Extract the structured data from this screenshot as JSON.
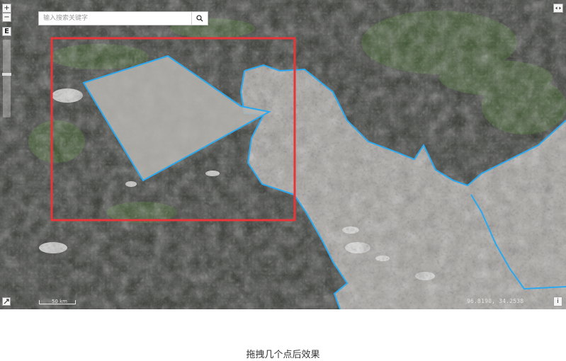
{
  "search": {
    "placeholder": "输入搜索关键字",
    "button_icon": "search-icon"
  },
  "controls": {
    "zoom_in": "+",
    "zoom_out": "−",
    "layer_toggle": "E",
    "expand_icon": "expand-icon",
    "fullscreen_icon": "collapse-arrows-icon",
    "info_label": "i"
  },
  "map": {
    "coordinates": "96.8190, 34.2538",
    "scale_label": "50 km",
    "colors": {
      "selection_box": "#e8353a",
      "polygon_stroke": "#2aa9f0",
      "polygon_fill": "#b9b6b1"
    }
  },
  "caption": "拖拽几个点后效果"
}
